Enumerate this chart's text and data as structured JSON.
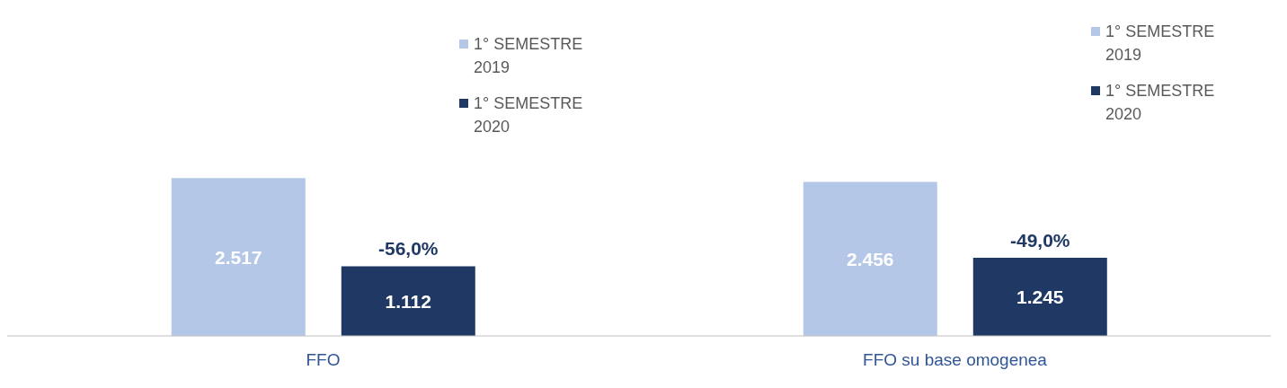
{
  "chart_data": {
    "type": "bar",
    "categories": [
      "FFO",
      "FFO su base omogenea"
    ],
    "series": [
      {
        "name": "1° SEMESTRE 2019",
        "color": "#b4c7e7",
        "values": [
          2517,
          2456
        ],
        "value_labels": [
          "2.517",
          "2.456"
        ]
      },
      {
        "name": "1° SEMESTRE 2020",
        "color": "#203864",
        "values": [
          1112,
          1245
        ],
        "value_labels": [
          "1.112",
          "1.245"
        ]
      }
    ],
    "annotations": [
      "-56,0%",
      "-49,0%"
    ],
    "legend": "top",
    "grid": false
  }
}
